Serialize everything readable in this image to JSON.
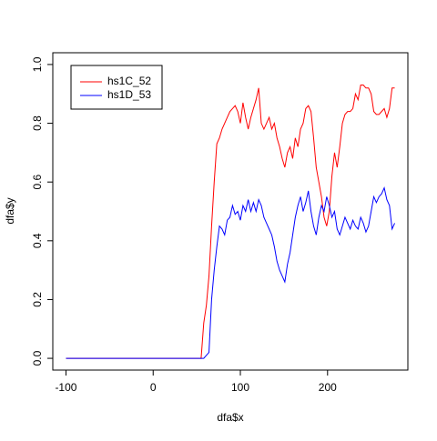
{
  "chart_data": {
    "type": "line",
    "xlabel": "dfa$x",
    "ylabel": "dfa$y",
    "x": [
      -100,
      55,
      58,
      61,
      64,
      67,
      70,
      73,
      76,
      79,
      82,
      85,
      88,
      91,
      94,
      97,
      100,
      103,
      106,
      109,
      112,
      115,
      118,
      121,
      124,
      127,
      130,
      133,
      136,
      139,
      142,
      145,
      148,
      151,
      154,
      157,
      160,
      163,
      166,
      169,
      172,
      175,
      178,
      181,
      184,
      187,
      190,
      193,
      196,
      199,
      202,
      205,
      208,
      211,
      214,
      217,
      220,
      223,
      226,
      229,
      232,
      235,
      238,
      241,
      244,
      247,
      250,
      253,
      256,
      259,
      262,
      265,
      268,
      271,
      274,
      277
    ],
    "series": [
      {
        "name": "hs1C_52",
        "color": "#ff0000",
        "values": [
          0,
          0,
          0.12,
          0.18,
          0.28,
          0.45,
          0.6,
          0.73,
          0.75,
          0.78,
          0.8,
          0.82,
          0.84,
          0.85,
          0.86,
          0.84,
          0.8,
          0.87,
          0.82,
          0.78,
          0.82,
          0.85,
          0.88,
          0.92,
          0.8,
          0.78,
          0.8,
          0.82,
          0.78,
          0.8,
          0.75,
          0.72,
          0.68,
          0.65,
          0.7,
          0.72,
          0.68,
          0.75,
          0.72,
          0.78,
          0.8,
          0.85,
          0.86,
          0.84,
          0.75,
          0.65,
          0.6,
          0.55,
          0.48,
          0.45,
          0.5,
          0.62,
          0.7,
          0.65,
          0.72,
          0.8,
          0.83,
          0.84,
          0.84,
          0.85,
          0.9,
          0.88,
          0.93,
          0.93,
          0.92,
          0.92,
          0.9,
          0.84,
          0.83,
          0.83,
          0.84,
          0.85,
          0.82,
          0.85,
          0.92,
          0.92
        ]
      },
      {
        "name": "hs1D_53",
        "color": "#0000ff",
        "values": [
          0,
          0,
          0,
          0.01,
          0.02,
          0.2,
          0.3,
          0.38,
          0.45,
          0.44,
          0.42,
          0.47,
          0.48,
          0.52,
          0.49,
          0.5,
          0.47,
          0.52,
          0.5,
          0.54,
          0.5,
          0.53,
          0.5,
          0.54,
          0.52,
          0.48,
          0.46,
          0.44,
          0.42,
          0.38,
          0.33,
          0.3,
          0.28,
          0.26,
          0.32,
          0.36,
          0.42,
          0.48,
          0.52,
          0.55,
          0.5,
          0.53,
          0.57,
          0.5,
          0.45,
          0.42,
          0.48,
          0.52,
          0.5,
          0.55,
          0.52,
          0.48,
          0.5,
          0.44,
          0.42,
          0.45,
          0.48,
          0.46,
          0.44,
          0.47,
          0.45,
          0.44,
          0.48,
          0.46,
          0.43,
          0.45,
          0.5,
          0.55,
          0.53,
          0.55,
          0.56,
          0.58,
          0.54,
          0.52,
          0.44,
          0.46
        ]
      }
    ],
    "xlim": [
      -115.1,
      292.1
    ],
    "xticks": [
      -100,
      0,
      100,
      200
    ],
    "ylim": [
      -0.04,
      1.04
    ],
    "yticks": [
      {
        "value": 0,
        "label": "0.0"
      },
      0.2,
      0.4,
      0.6,
      0.8,
      {
        "value": 1,
        "label": "1.0"
      }
    ],
    "legend": "top-left"
  }
}
